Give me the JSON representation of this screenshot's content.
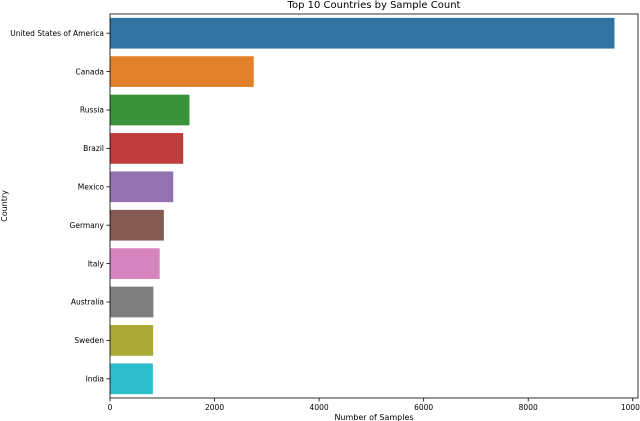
{
  "chart_data": {
    "type": "bar",
    "orientation": "horizontal",
    "title": "Top 10 Countries by Sample Count",
    "xlabel": "Number of Samples",
    "ylabel": "Country",
    "categories": [
      "United States of America",
      "Canada",
      "Russia",
      "Brazil",
      "Mexico",
      "Germany",
      "Italy",
      "Australia",
      "Sweden",
      "India"
    ],
    "values": [
      9650,
      2750,
      1520,
      1400,
      1210,
      1030,
      950,
      830,
      825,
      820
    ],
    "colors": [
      "#3274a1",
      "#e1812c",
      "#3a923a",
      "#c03d3e",
      "#9372b2",
      "#845b53",
      "#d684bd",
      "#7f7f7f",
      "#a9aa35",
      "#2ebdcc"
    ],
    "xticks": [
      0,
      2000,
      4000,
      6000,
      8000,
      10000
    ],
    "xlim": [
      0,
      10100
    ],
    "grid": false,
    "legend": "none"
  }
}
